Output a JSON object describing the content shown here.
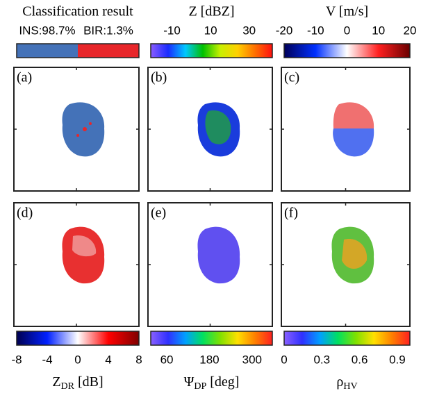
{
  "colorbars_top": [
    {
      "title": "Classification result",
      "classes": [
        "INS:98.7%",
        "BIR:1.3%"
      ],
      "colors": [
        "#4472b8",
        "#e8262a"
      ]
    },
    {
      "title": "Z [dBZ]",
      "lim": [
        -21,
        42
      ],
      "ticks": [
        -10,
        10,
        30
      ],
      "colors": [
        "#8a5cff",
        "#1a2cff",
        "#00c8ff",
        "#00c000",
        "#c8f000",
        "#ffd000",
        "#ff7000",
        "#ff1010"
      ]
    },
    {
      "title": "V [m/s]",
      "lim": [
        -20,
        20
      ],
      "ticks": [
        -20,
        -10,
        0,
        10,
        20
      ],
      "colors": [
        "#00005a",
        "#0030ff",
        "#ffffff",
        "#ff2020",
        "#6a0000"
      ]
    }
  ],
  "panels": [
    "(a)",
    "(b)",
    "(c)",
    "(d)",
    "(e)",
    "(f)"
  ],
  "colorbars_bottom": [
    {
      "symbol": "Z",
      "subscript": "DR",
      "unit": " [dB]",
      "lim": [
        -8,
        8
      ],
      "ticks": [
        -8,
        -4,
        0,
        4,
        8
      ],
      "colors": [
        "#000050",
        "#0020ff",
        "#ffffff",
        "#ff0000",
        "#800000"
      ]
    },
    {
      "symbol": "Ψ",
      "subscript": "DP",
      "unit": " [deg]",
      "lim": [
        15,
        357
      ],
      "ticks": [
        60,
        180,
        300
      ],
      "colors": [
        "#8a60ff",
        "#3030ff",
        "#00a0ff",
        "#00e060",
        "#80e000",
        "#ffe000",
        "#ff8000",
        "#ff2020"
      ]
    },
    {
      "symbol": "ρ",
      "subscript": "HV",
      "unit": "",
      "lim": [
        0,
        1
      ],
      "ticks": [
        0,
        0.3,
        0.6,
        0.9
      ],
      "colors": [
        "#8a60ff",
        "#3030ff",
        "#00a0ff",
        "#00e060",
        "#80e000",
        "#ffe000",
        "#ff8000",
        "#ff2020"
      ]
    }
  ]
}
